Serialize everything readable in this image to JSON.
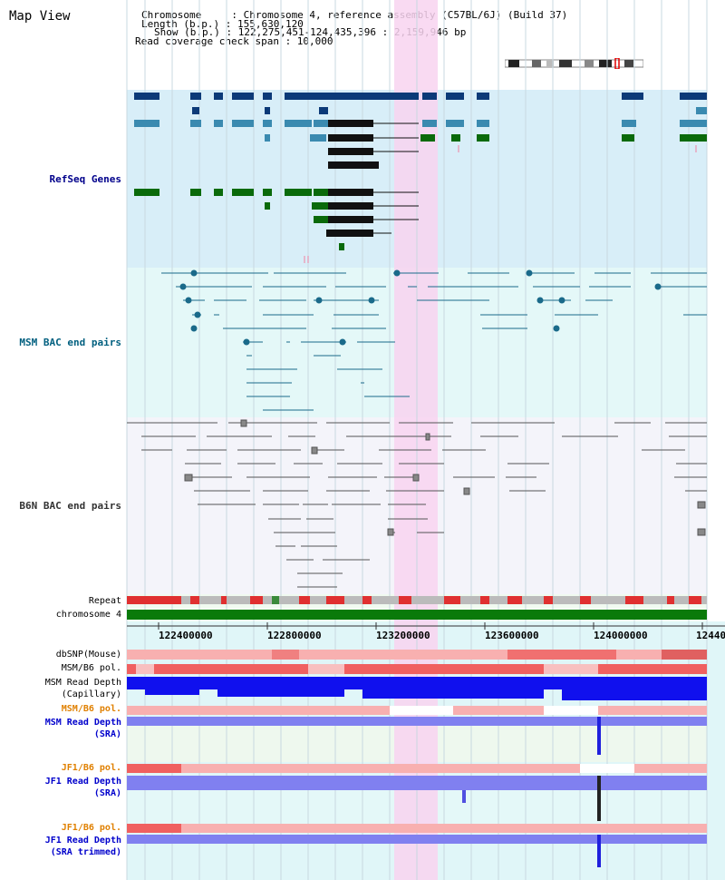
{
  "page": {
    "title": "Map View"
  },
  "header": {
    "lines": [
      "Chromosome     : Chromosome 4, reference assembly (C57BL/6J) (Build 37)",
      "Length (b.p.) : 155,630,120",
      "Show (b.p.) : 122,275,451-124,435,396 : 2,159,946 bp",
      "Read coverage check span : 10,000"
    ]
  },
  "tracks": {
    "refseq": "RefSeq Genes",
    "msm_bac": "MSM BAC end pairs",
    "b6n_bac": "B6N BAC end pairs",
    "repeat": "Repeat",
    "chromosome": "chromosome 4",
    "dbsnp": "dbSNP(Mouse)",
    "msm_b6_pol_1": "MSM/B6 pol.",
    "msm_read_depth_cap_1": "MSM Read Depth",
    "msm_read_depth_cap_2": "(Capillary)",
    "msm_b6_pol_2": "MSM/B6 pol.",
    "msm_read_depth_sra_1": "MSM Read Depth",
    "msm_read_depth_sra_2": "(SRA)",
    "jf1_b6_pol_1": "JF1/B6 pol.",
    "jf1_read_depth_sra_1": "JF1 Read Depth",
    "jf1_read_depth_sra_2": "(SRA)",
    "jf1_b6_pol_2": "JF1/B6 pol.",
    "jf1_read_depth_trim_1": "JF1 Read Depth",
    "jf1_read_depth_trim_2": "(SRA trimmed)"
  },
  "axis": {
    "ticks": [
      "122400000",
      "122800000",
      "123200000",
      "123600000",
      "124000000",
      "12440"
    ]
  },
  "colors": {
    "refseq_bg": "#d8eef8",
    "msm_bg": "#e4f8f8",
    "b6n_bg": "#f4f4fa",
    "highlight": "#f8d4f0",
    "chrom_green": "#0a7a0a",
    "depth_blue": "#1010ee",
    "depth_light": "#8080f0",
    "pol_red": "#f06060"
  }
}
